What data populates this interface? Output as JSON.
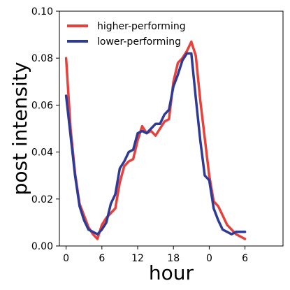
{
  "chart_data": {
    "type": "line",
    "xlabel": "hour",
    "ylabel": "post intensity",
    "xlim": [
      -1.5,
      48.5
    ],
    "ylim": [
      0,
      0.1
    ],
    "x_ticks": [
      0,
      8,
      16,
      24,
      32,
      40,
      48
    ],
    "x_tick_labels": [
      "0",
      "6",
      "12",
      "18",
      "0",
      "6"
    ],
    "x_tick_values": [
      0,
      8,
      16,
      24,
      32,
      40
    ],
    "y_ticks": [
      0,
      0.02,
      0.04,
      0.06,
      0.08,
      0.1
    ],
    "y_tick_labels": [
      "0.00",
      "0.02",
      "0.04",
      "0.06",
      "0.08",
      "0.10"
    ],
    "legend_position": "top-left",
    "grid": false,
    "x": [
      0,
      1,
      2,
      3,
      4,
      5,
      6,
      7,
      8,
      9,
      10,
      11,
      12,
      13,
      14,
      15,
      16,
      17,
      18,
      19,
      20,
      21,
      22,
      23,
      24,
      25,
      26,
      27,
      28,
      29,
      30,
      31,
      32,
      33,
      34,
      35,
      36,
      37,
      38,
      39,
      40
    ],
    "series": [
      {
        "name": "higher-performing",
        "color": "#e8413c",
        "values": [
          0.08,
          0.05,
          0.031,
          0.018,
          0.013,
          0.008,
          0.005,
          0.003,
          0.009,
          0.012,
          0.014,
          0.016,
          0.027,
          0.034,
          0.036,
          0.037,
          0.045,
          0.051,
          0.048,
          0.049,
          0.047,
          0.05,
          0.053,
          0.054,
          0.07,
          0.078,
          0.08,
          0.083,
          0.087,
          0.081,
          0.062,
          0.046,
          0.03,
          0.019,
          0.017,
          0.013,
          0.009,
          0.007,
          0.005,
          0.004,
          0.003
        ]
      },
      {
        "name": "lower-performing",
        "color": "#2e3a97",
        "values": [
          0.064,
          0.047,
          0.03,
          0.017,
          0.011,
          0.007,
          0.006,
          0.005,
          0.007,
          0.01,
          0.018,
          0.022,
          0.033,
          0.036,
          0.04,
          0.041,
          0.048,
          0.049,
          0.048,
          0.05,
          0.052,
          0.052,
          0.056,
          0.058,
          0.068,
          0.073,
          0.079,
          0.082,
          0.082,
          0.063,
          0.045,
          0.03,
          0.028,
          0.016,
          0.011,
          0.007,
          0.006,
          0.005,
          0.006,
          0.006,
          0.006
        ]
      }
    ]
  }
}
